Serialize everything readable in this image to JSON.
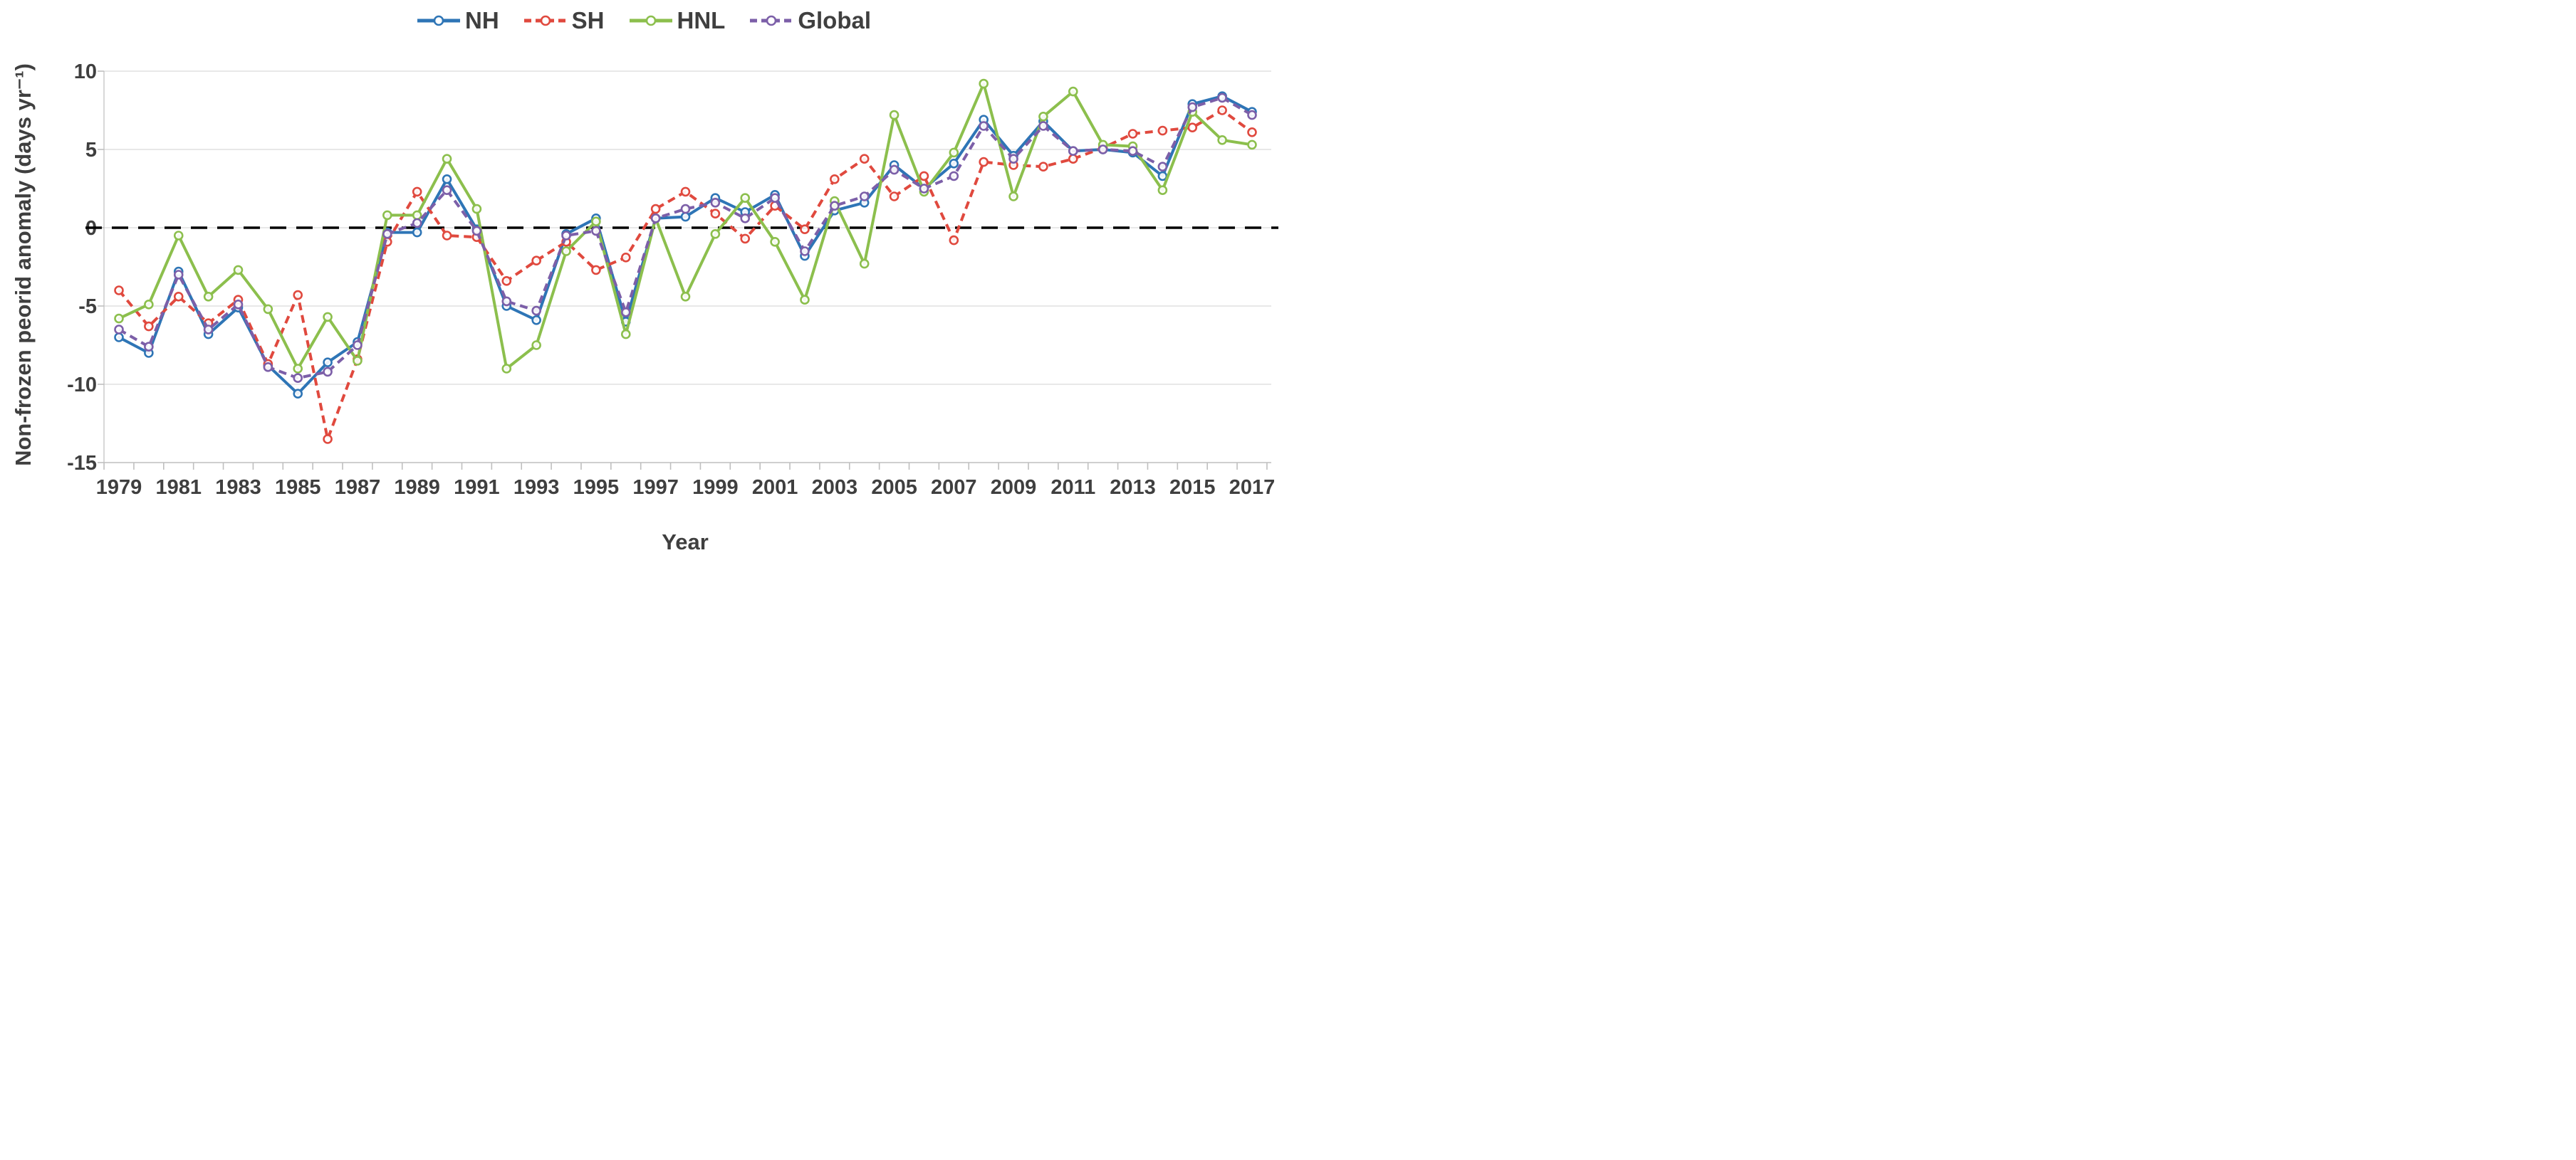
{
  "figure": {
    "background": "#ffffff",
    "text_color": "#3f3f3f",
    "gridline_color": "#d9d9d9",
    "axis_color": "#bfbfbf"
  },
  "chart_data": {
    "type": "line",
    "title": "",
    "xlabel": "Year",
    "ylabel": "Non-frozen peorid anomaly (days yr⁻¹)",
    "ylim": [
      -15,
      10
    ],
    "yticks": [
      10,
      5,
      0,
      -5,
      -10,
      -15
    ],
    "grid": true,
    "legend_position": "top",
    "zero_line": {
      "show": true,
      "color": "#000000",
      "style": "dashed"
    },
    "x": [
      1979,
      1980,
      1981,
      1982,
      1983,
      1984,
      1985,
      1986,
      1987,
      1988,
      1989,
      1990,
      1991,
      1992,
      1993,
      1994,
      1995,
      1996,
      1997,
      1998,
      1999,
      2000,
      2001,
      2002,
      2003,
      2004,
      2005,
      2006,
      2007,
      2008,
      2009,
      2010,
      2011,
      2012,
      2013,
      2014,
      2015,
      2016,
      2017
    ],
    "xtick_labels": [
      "1979",
      "1981",
      "1983",
      "1985",
      "1987",
      "1989",
      "1991",
      "1993",
      "1995",
      "1997",
      "1999",
      "2001",
      "2003",
      "2005",
      "2007",
      "2009",
      "2011",
      "2013",
      "2015",
      "2017"
    ],
    "series": [
      {
        "name": "NH",
        "color": "#2e75b6",
        "style": "solid",
        "marker": "circle",
        "values": [
          -7.0,
          -8.0,
          -2.8,
          -6.8,
          -5.1,
          -8.8,
          -10.6,
          -8.6,
          -7.3,
          -0.3,
          -0.3,
          3.1,
          -0.1,
          -5.0,
          -5.9,
          -0.4,
          0.6,
          -6.0,
          0.6,
          0.7,
          1.9,
          1.0,
          2.1,
          -1.8,
          1.1,
          1.6,
          4.0,
          2.5,
          4.1,
          6.9,
          4.6,
          6.8,
          4.9,
          5.0,
          4.8,
          3.3,
          7.9,
          8.4,
          7.4
        ]
      },
      {
        "name": "SH",
        "color": "#e0493e",
        "style": "dashed",
        "marker": "circle",
        "values": [
          -4.0,
          -6.3,
          -4.4,
          -6.1,
          -4.6,
          -8.7,
          -4.3,
          -13.5,
          -8.4,
          -0.9,
          2.3,
          -0.5,
          -0.6,
          -3.4,
          -2.1,
          -0.9,
          -2.7,
          -1.9,
          1.2,
          2.3,
          0.9,
          -0.7,
          1.4,
          -0.1,
          3.1,
          4.4,
          2.0,
          3.3,
          -0.8,
          4.2,
          4.0,
          3.9,
          4.4,
          5.1,
          6.0,
          6.2,
          6.4,
          7.5,
          6.1
        ]
      },
      {
        "name": "HNL",
        "color": "#8cbf4d",
        "style": "solid",
        "marker": "circle",
        "values": [
          -5.8,
          -4.9,
          -0.5,
          -4.4,
          -2.7,
          -5.2,
          -9.0,
          -5.7,
          -8.5,
          0.8,
          0.8,
          4.4,
          1.2,
          -9.0,
          -7.5,
          -1.5,
          0.4,
          -6.8,
          0.6,
          -4.4,
          -0.4,
          1.9,
          -0.9,
          -4.6,
          1.7,
          -2.3,
          7.2,
          2.3,
          4.8,
          9.2,
          2.0,
          7.1,
          8.7,
          5.3,
          5.2,
          2.4,
          7.4,
          5.6,
          5.3
        ]
      },
      {
        "name": "Global",
        "color": "#7c5fa8",
        "style": "dashed",
        "marker": "circle",
        "values": [
          -6.5,
          -7.6,
          -3.0,
          -6.5,
          -4.9,
          -8.9,
          -9.6,
          -9.2,
          -7.5,
          -0.4,
          0.3,
          2.4,
          -0.2,
          -4.7,
          -5.3,
          -0.5,
          -0.2,
          -5.4,
          0.6,
          1.2,
          1.6,
          0.6,
          1.9,
          -1.5,
          1.4,
          2.0,
          3.7,
          2.5,
          3.3,
          6.5,
          4.4,
          6.5,
          4.9,
          5.0,
          4.9,
          3.9,
          7.7,
          8.3,
          7.2
        ]
      }
    ]
  }
}
